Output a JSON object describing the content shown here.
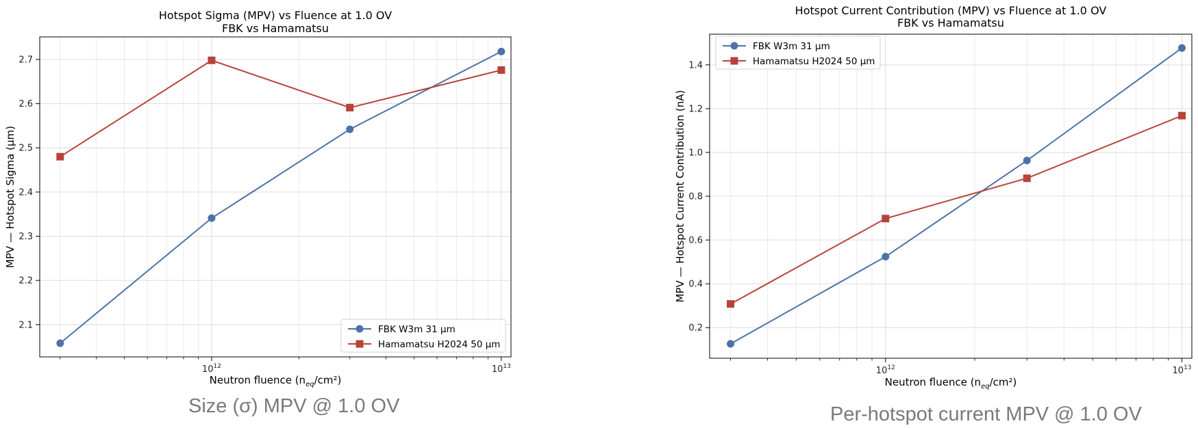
{
  "chart_data": [
    {
      "type": "line",
      "title": "Hotspot Sigma (MPV) vs Fluence at 1.0 OV",
      "subtitle": "FBK vs Hamamatsu",
      "xlabel_main": "Neutron fluence (n",
      "xlabel_sub": "eq",
      "xlabel_end": "/cm²)",
      "ylabel": "MPV — Hotspot Sigma (µm)",
      "xscale": "log",
      "xlim": [
        255000000000.0,
        10800000000000.0
      ],
      "ylim": [
        2.027,
        2.751
      ],
      "x_ticks": [
        {
          "value": 1000000000000.0,
          "base": "10",
          "exp": "12"
        },
        {
          "value": 10000000000000.0,
          "base": "10",
          "exp": "13"
        }
      ],
      "y_ticks": [
        {
          "value": 2.1,
          "label": "2.1"
        },
        {
          "value": 2.2,
          "label": "2.2"
        },
        {
          "value": 2.3,
          "label": "2.3"
        },
        {
          "value": 2.4,
          "label": "2.4"
        },
        {
          "value": 2.5,
          "label": "2.5"
        },
        {
          "value": 2.6,
          "label": "2.6"
        },
        {
          "value": 2.7,
          "label": "2.7"
        }
      ],
      "grid": true,
      "legend_position": "lower-right",
      "x": [
        300000000000.0,
        1000000000000.0,
        3000000000000.0,
        10000000000000.0
      ],
      "series": [
        {
          "name": "FBK W3m 31 µm",
          "color": "#4c72a8",
          "marker": "circle",
          "values": [
            2.058,
            2.341,
            2.542,
            2.718
          ]
        },
        {
          "name": "Hamamatsu H2024 50 µm",
          "color": "#b8433a",
          "marker": "square",
          "values": [
            2.48,
            2.698,
            2.591,
            2.676
          ]
        }
      ],
      "caption": "Size (σ) MPV @ 1.0 OV"
    },
    {
      "type": "line",
      "title": "Hotspot Current Contribution (MPV) vs Fluence at 1.0 OV",
      "subtitle": "FBK vs Hamamatsu",
      "xlabel_main": "Neutron fluence (n",
      "xlabel_sub": "eq",
      "xlabel_end": "/cm²)",
      "ylabel": "MPV — Hotspot Current Contribution (nA)",
      "xscale": "log",
      "xlim": [
        255000000000.0,
        10800000000000.0
      ],
      "ylim": [
        0.06,
        1.54
      ],
      "x_ticks": [
        {
          "value": 1000000000000.0,
          "base": "10",
          "exp": "12"
        },
        {
          "value": 10000000000000.0,
          "base": "10",
          "exp": "13"
        }
      ],
      "y_ticks": [
        {
          "value": 0.2,
          "label": "0.2"
        },
        {
          "value": 0.4,
          "label": "0.4"
        },
        {
          "value": 0.6,
          "label": "0.6"
        },
        {
          "value": 0.8,
          "label": "0.8"
        },
        {
          "value": 1.0,
          "label": "1.0"
        },
        {
          "value": 1.2,
          "label": "1.2"
        },
        {
          "value": 1.4,
          "label": "1.4"
        }
      ],
      "grid": true,
      "legend_position": "upper-left",
      "x": [
        300000000000.0,
        1000000000000.0,
        3000000000000.0,
        10000000000000.0
      ],
      "series": [
        {
          "name": "FBK W3m 31 µm",
          "color": "#4c72a8",
          "marker": "circle",
          "values": [
            0.126,
            0.524,
            0.963,
            1.477
          ]
        },
        {
          "name": "Hamamatsu H2024 50 µm",
          "color": "#b8433a",
          "marker": "square",
          "values": [
            0.308,
            0.698,
            0.882,
            1.168
          ]
        }
      ],
      "caption": "Per-hotspot current MPV @ 1.0 OV"
    }
  ]
}
